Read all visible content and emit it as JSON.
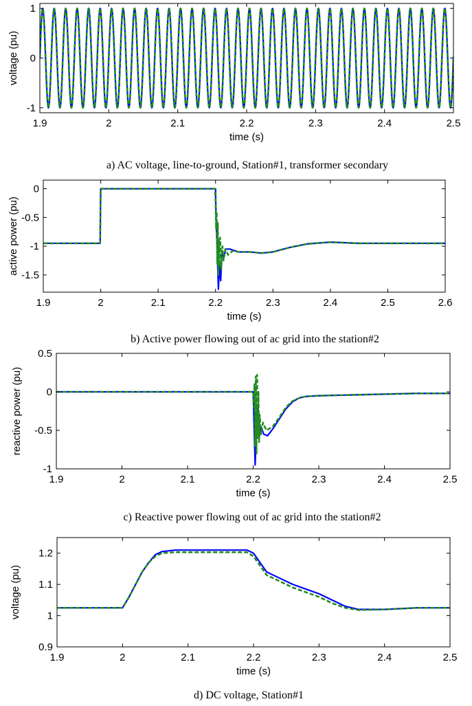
{
  "colors": {
    "series_blue": "#0000ff",
    "series_green": "#228b22",
    "axis": "#000000"
  },
  "chart_data": [
    {
      "type": "line",
      "caption": "a) AC voltage, line-to-ground, Station#1, transformer secondary",
      "xlabel": "time (s)",
      "ylabel": "voltage (pu)",
      "xlim": [
        1.9,
        2.5
      ],
      "ylim": [
        -1.1,
        1.1
      ],
      "xticks": [
        "1.9",
        "2",
        "2.1",
        "2.2",
        "2.3",
        "2.4",
        "2.5"
      ],
      "yticks": [
        "-1",
        "0",
        "1"
      ],
      "signal": {
        "kind": "sinusoid",
        "amplitude": 1.0,
        "frequency_hz": 60
      },
      "series": [
        {
          "color": "#0000ff",
          "x": [
            1.9,
            2.5
          ],
          "y": [
            0,
            0
          ]
        },
        {
          "color": "#228b22",
          "x": [
            1.9,
            2.5
          ],
          "y": [
            0,
            0
          ]
        }
      ]
    },
    {
      "type": "line",
      "caption": "b) Active power flowing out of ac grid into the station#2",
      "xlabel": "time (s)",
      "ylabel": "active power (pu)",
      "xlim": [
        1.9,
        2.6
      ],
      "ylim": [
        -1.8,
        0.15
      ],
      "xticks": [
        "1.9",
        "2",
        "2.1",
        "2.2",
        "2.3",
        "2.4",
        "2.5",
        "2.6"
      ],
      "yticks": [
        "0",
        "-0.5",
        "-1",
        "-1.5"
      ],
      "series": [
        {
          "color": "#0000ff",
          "x": [
            1.9,
            1.999,
            2.0,
            2.2,
            2.201,
            2.203,
            2.205,
            2.207,
            2.209,
            2.211,
            2.214,
            2.218,
            2.225,
            2.24,
            2.26,
            2.28,
            2.3,
            2.33,
            2.36,
            2.4,
            2.45,
            2.5,
            2.6
          ],
          "y": [
            -0.95,
            -0.95,
            0,
            0,
            -0.5,
            -1.1,
            -1.75,
            -1.3,
            -1.6,
            -1.1,
            -1.2,
            -1.05,
            -1.05,
            -1.1,
            -1.1,
            -1.12,
            -1.1,
            -1.02,
            -0.96,
            -0.93,
            -0.95,
            -0.95,
            -0.95
          ]
        },
        {
          "color": "#228b22",
          "x": [
            1.9,
            1.999,
            2.0,
            2.199,
            2.2,
            2.201,
            2.202,
            2.203,
            2.204,
            2.205,
            2.206,
            2.207,
            2.208,
            2.21,
            2.212,
            2.214,
            2.217,
            2.222,
            2.23,
            2.24,
            2.26,
            2.28,
            2.3,
            2.33,
            2.36,
            2.4,
            2.45,
            2.5,
            2.6
          ],
          "y": [
            -0.95,
            -0.95,
            0,
            0,
            -0.2,
            -0.7,
            -0.4,
            -1.3,
            -0.6,
            -1.5,
            -0.9,
            -1.35,
            -0.85,
            -1.4,
            -1.0,
            -1.25,
            -1.05,
            -1.15,
            -1.08,
            -1.1,
            -1.1,
            -1.12,
            -1.1,
            -1.02,
            -0.96,
            -0.93,
            -0.95,
            -0.95,
            -0.95
          ]
        }
      ]
    },
    {
      "type": "line",
      "caption": "c) Reactive power flowing out of ac grid into the station#2",
      "xlabel": "time (s)",
      "ylabel": "reactive power (pu)",
      "xlim": [
        1.9,
        2.5
      ],
      "ylim": [
        -1.0,
        0.5
      ],
      "xticks": [
        "1.9",
        "2",
        "2.1",
        "2.2",
        "2.3",
        "2.4",
        "2.5"
      ],
      "yticks": [
        "0.5",
        "0",
        "-0.5",
        "-1"
      ],
      "series": [
        {
          "color": "#0000ff",
          "x": [
            1.9,
            2.2,
            2.201,
            2.203,
            2.205,
            2.207,
            2.209,
            2.212,
            2.216,
            2.222,
            2.23,
            2.24,
            2.25,
            2.26,
            2.27,
            2.28,
            2.3,
            2.35,
            2.4,
            2.45,
            2.5
          ],
          "y": [
            0,
            0,
            -0.3,
            -0.95,
            -0.5,
            -0.2,
            -0.6,
            -0.45,
            -0.55,
            -0.57,
            -0.48,
            -0.35,
            -0.22,
            -0.13,
            -0.08,
            -0.06,
            -0.05,
            -0.04,
            -0.03,
            -0.02,
            -0.02
          ]
        },
        {
          "color": "#228b22",
          "x": [
            1.9,
            2.2,
            2.201,
            2.202,
            2.203,
            2.204,
            2.205,
            2.206,
            2.207,
            2.208,
            2.209,
            2.21,
            2.212,
            2.215,
            2.22,
            2.23,
            2.24,
            2.25,
            2.26,
            2.27,
            2.28,
            2.3,
            2.35,
            2.4,
            2.45,
            2.5
          ],
          "y": [
            0,
            0,
            -0.2,
            0.1,
            -0.7,
            0.2,
            -0.8,
            0.22,
            -0.6,
            0.0,
            -0.65,
            -0.3,
            -0.55,
            -0.4,
            -0.5,
            -0.45,
            -0.33,
            -0.2,
            -0.12,
            -0.08,
            -0.06,
            -0.05,
            -0.04,
            -0.03,
            -0.02,
            -0.02
          ]
        }
      ]
    },
    {
      "type": "line",
      "caption": "d) DC voltage, Station#1",
      "xlabel": "time (s)",
      "ylabel": "voltage (pu)",
      "xlim": [
        1.9,
        2.5
      ],
      "ylim": [
        0.9,
        1.25
      ],
      "xticks": [
        "1.9",
        "2",
        "2.1",
        "2.2",
        "2.3",
        "2.4",
        "2.5"
      ],
      "yticks": [
        "1.2",
        "1.1",
        "1",
        "0.9"
      ],
      "series": [
        {
          "color": "#0000ff",
          "x": [
            1.9,
            2.0,
            2.01,
            2.02,
            2.03,
            2.04,
            2.05,
            2.06,
            2.08,
            2.1,
            2.15,
            2.19,
            2.2,
            2.21,
            2.22,
            2.24,
            2.26,
            2.28,
            2.3,
            2.32,
            2.34,
            2.36,
            2.4,
            2.45,
            2.5
          ],
          "y": [
            1.025,
            1.025,
            1.06,
            1.1,
            1.14,
            1.17,
            1.195,
            1.205,
            1.21,
            1.21,
            1.21,
            1.21,
            1.2,
            1.17,
            1.14,
            1.12,
            1.1,
            1.085,
            1.07,
            1.05,
            1.03,
            1.02,
            1.02,
            1.025,
            1.025
          ]
        },
        {
          "color": "#228b22",
          "x": [
            1.9,
            2.0,
            2.01,
            2.02,
            2.03,
            2.04,
            2.05,
            2.06,
            2.08,
            2.1,
            2.15,
            2.19,
            2.2,
            2.21,
            2.22,
            2.24,
            2.26,
            2.28,
            2.3,
            2.32,
            2.34,
            2.36,
            2.4,
            2.45,
            2.5
          ],
          "y": [
            1.025,
            1.025,
            1.06,
            1.1,
            1.14,
            1.17,
            1.19,
            1.2,
            1.203,
            1.203,
            1.203,
            1.203,
            1.19,
            1.16,
            1.13,
            1.11,
            1.09,
            1.075,
            1.06,
            1.04,
            1.025,
            1.018,
            1.02,
            1.025,
            1.025
          ]
        }
      ]
    }
  ]
}
